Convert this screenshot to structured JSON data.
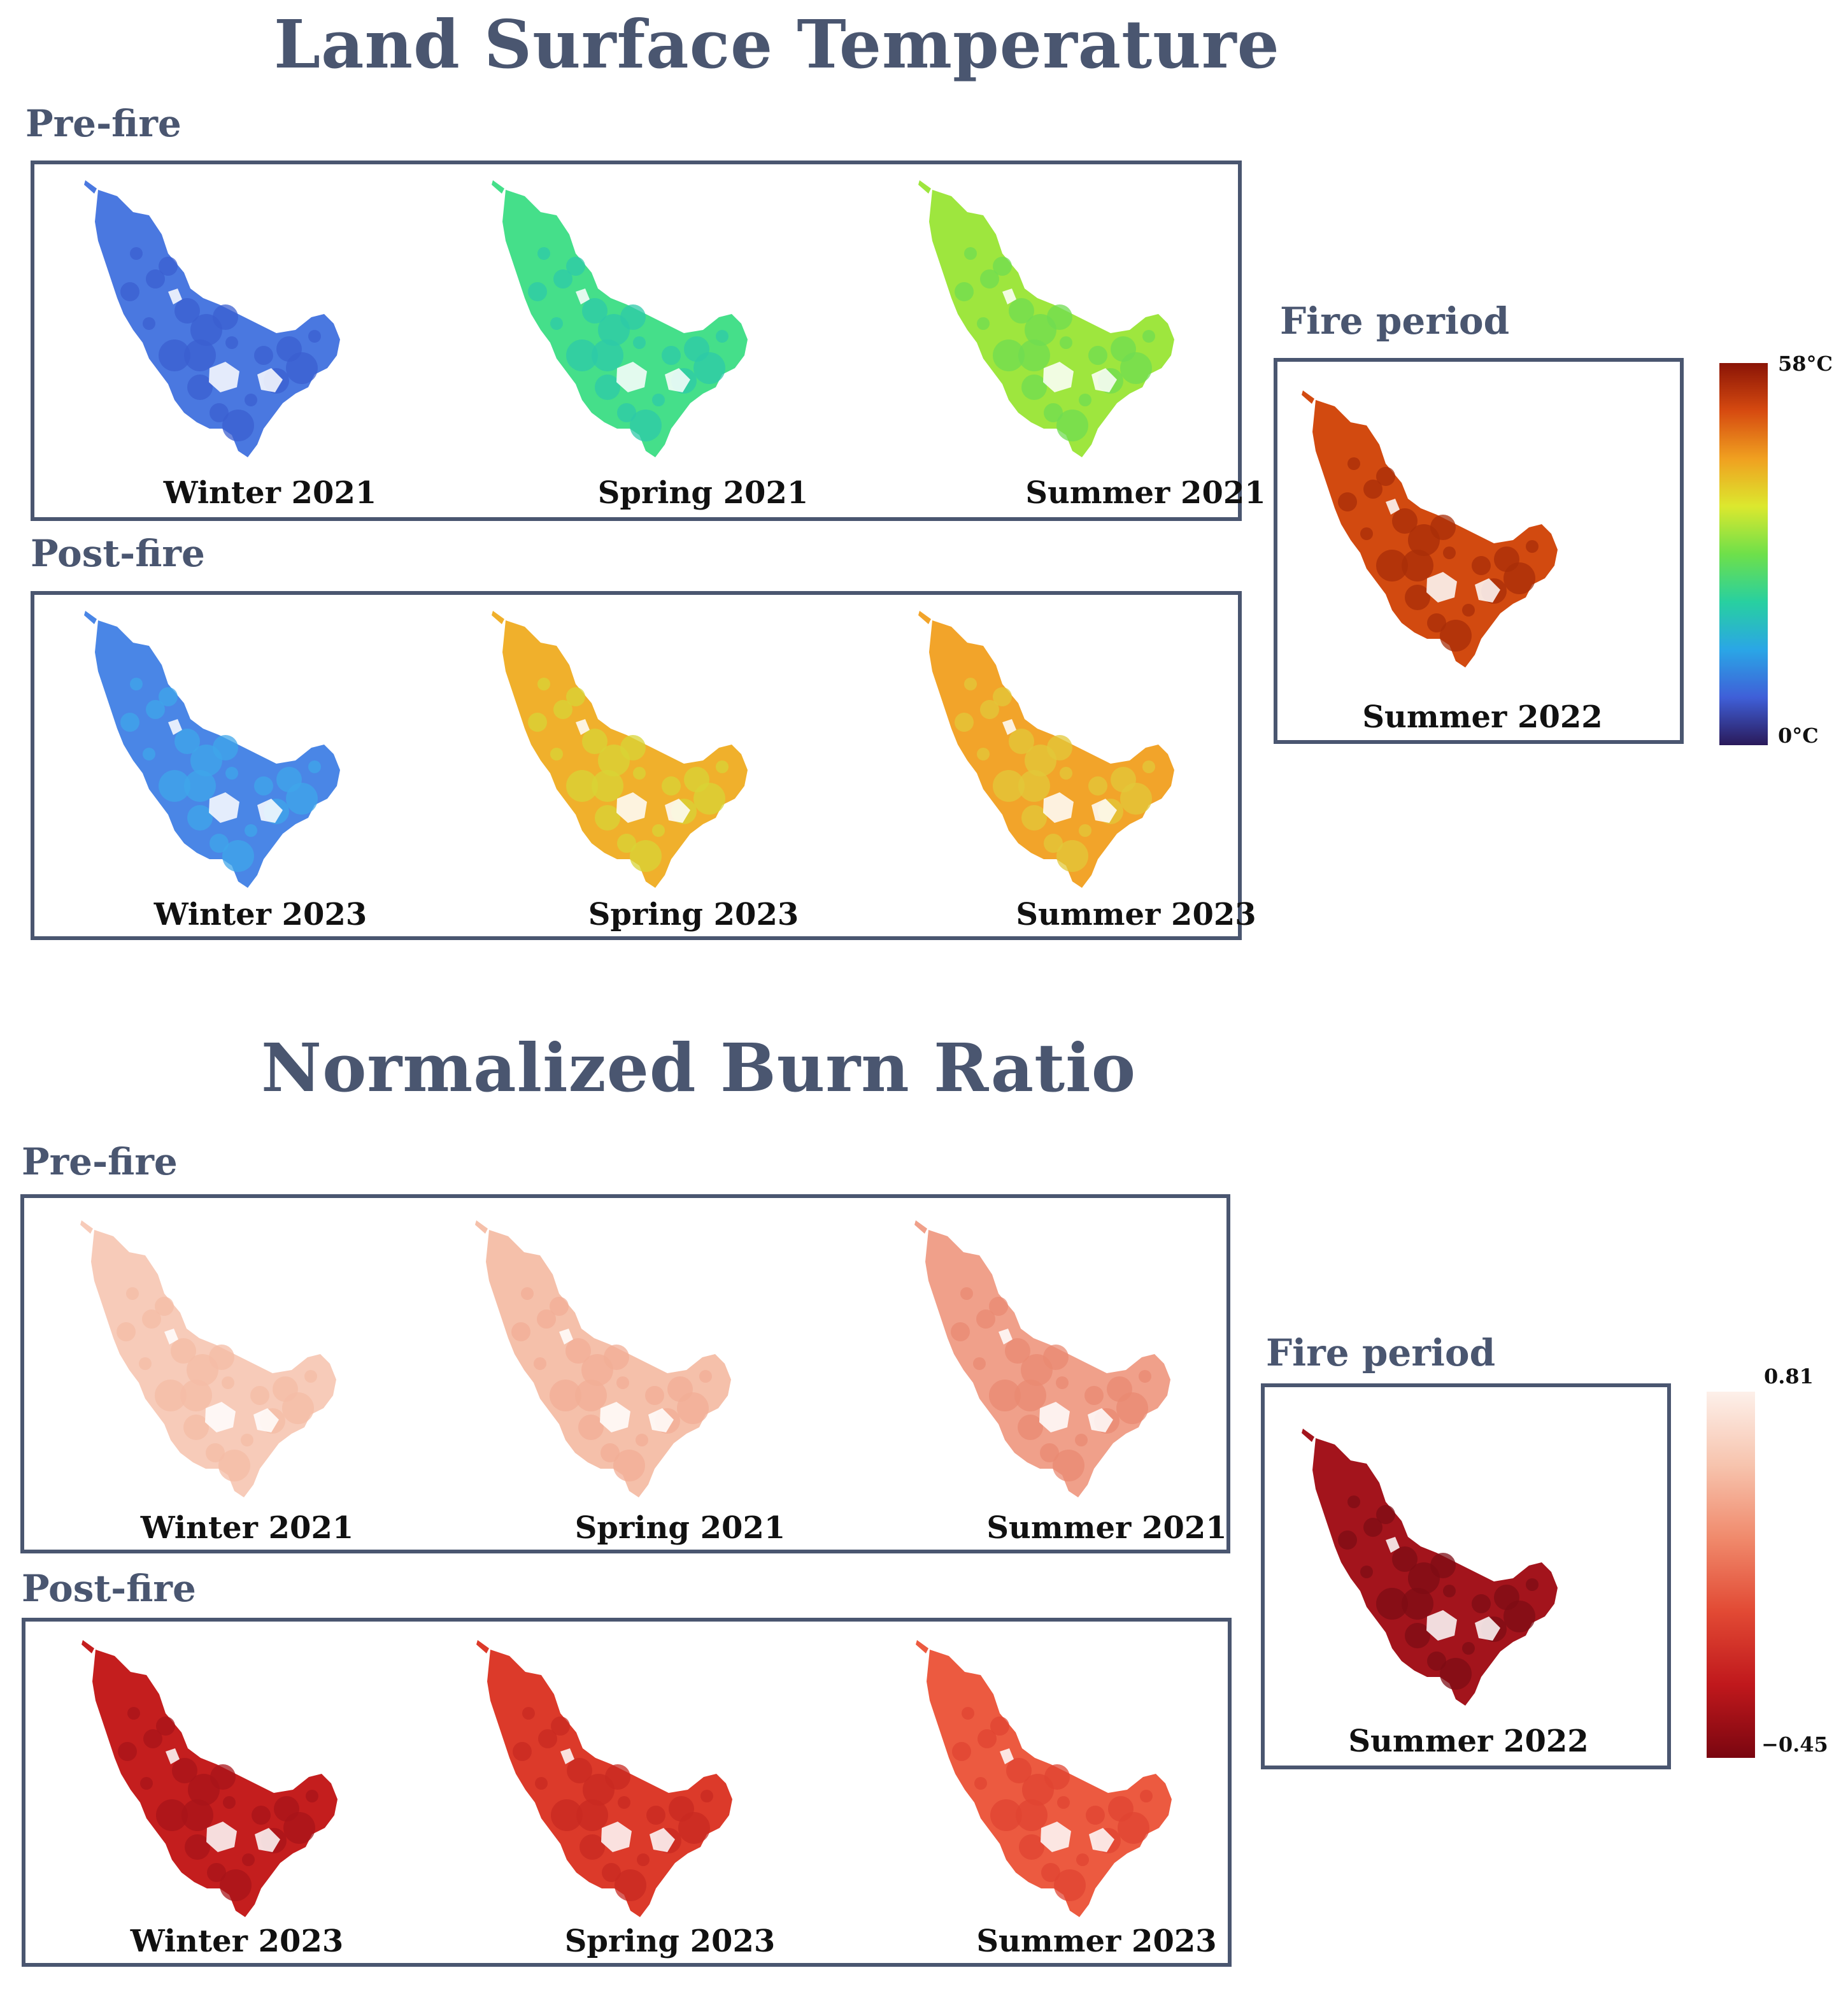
{
  "lst": {
    "title": "Land Surface Temperature",
    "pre_label": "Pre-fire",
    "post_label": "Post-fire",
    "fire_label": "Fire period",
    "pre": [
      {
        "label": "Winter 2021",
        "color": "#4a78e0",
        "color2": "#3b5fd0"
      },
      {
        "label": "Spring 2021",
        "color": "#45df8a",
        "color2": "#2ec9a8"
      },
      {
        "label": "Summer 2021",
        "color": "#9ee63e",
        "color2": "#6fdc52"
      }
    ],
    "post": [
      {
        "label": "Winter 2023",
        "color": "#4a86e6",
        "color2": "#3fa6ea"
      },
      {
        "label": "Spring 2023",
        "color": "#f0b02c",
        "color2": "#d8d436"
      },
      {
        "label": "Summer 2023",
        "color": "#f2a42a",
        "color2": "#e2c83a"
      }
    ],
    "fire": {
      "label": "Summer 2022",
      "color": "#d24a10",
      "color2": "#a82e08"
    },
    "colorbar": {
      "max": "58°C",
      "min": "0°C",
      "colors": [
        "#8a1406",
        "#d64a10",
        "#f0a020",
        "#dce82e",
        "#6ee04a",
        "#28d0a0",
        "#2aa6e6",
        "#3f5fd8",
        "#2a1a5a"
      ]
    }
  },
  "nbr": {
    "title": "Normalized Burn Ratio",
    "pre_label": "Pre-fire",
    "post_label": "Post-fire",
    "fire_label": "Fire period",
    "pre": [
      {
        "label": "Winter 2021",
        "color": "#f7cbb9",
        "color2": "#f4bca6"
      },
      {
        "label": "Spring 2021",
        "color": "#f5c0aa",
        "color2": "#f1ae96"
      },
      {
        "label": "Summer 2021",
        "color": "#f0a08a",
        "color2": "#e98a72"
      }
    ],
    "post": [
      {
        "label": "Winter 2023",
        "color": "#c41e1e",
        "color2": "#a8141a"
      },
      {
        "label": "Spring 2023",
        "color": "#dc3a2a",
        "color2": "#c82a22"
      },
      {
        "label": "Summer 2023",
        "color": "#ec5a40",
        "color2": "#e04432"
      }
    ],
    "fire": {
      "label": "Summer 2022",
      "color": "#a3141c",
      "color2": "#7e0c14"
    },
    "colorbar": {
      "max": "0.81",
      "min": "−0.45",
      "colors": [
        "#fdf0ea",
        "#f7c4ae",
        "#f08a6c",
        "#e24a34",
        "#c0181c",
        "#7a0610"
      ]
    }
  }
}
